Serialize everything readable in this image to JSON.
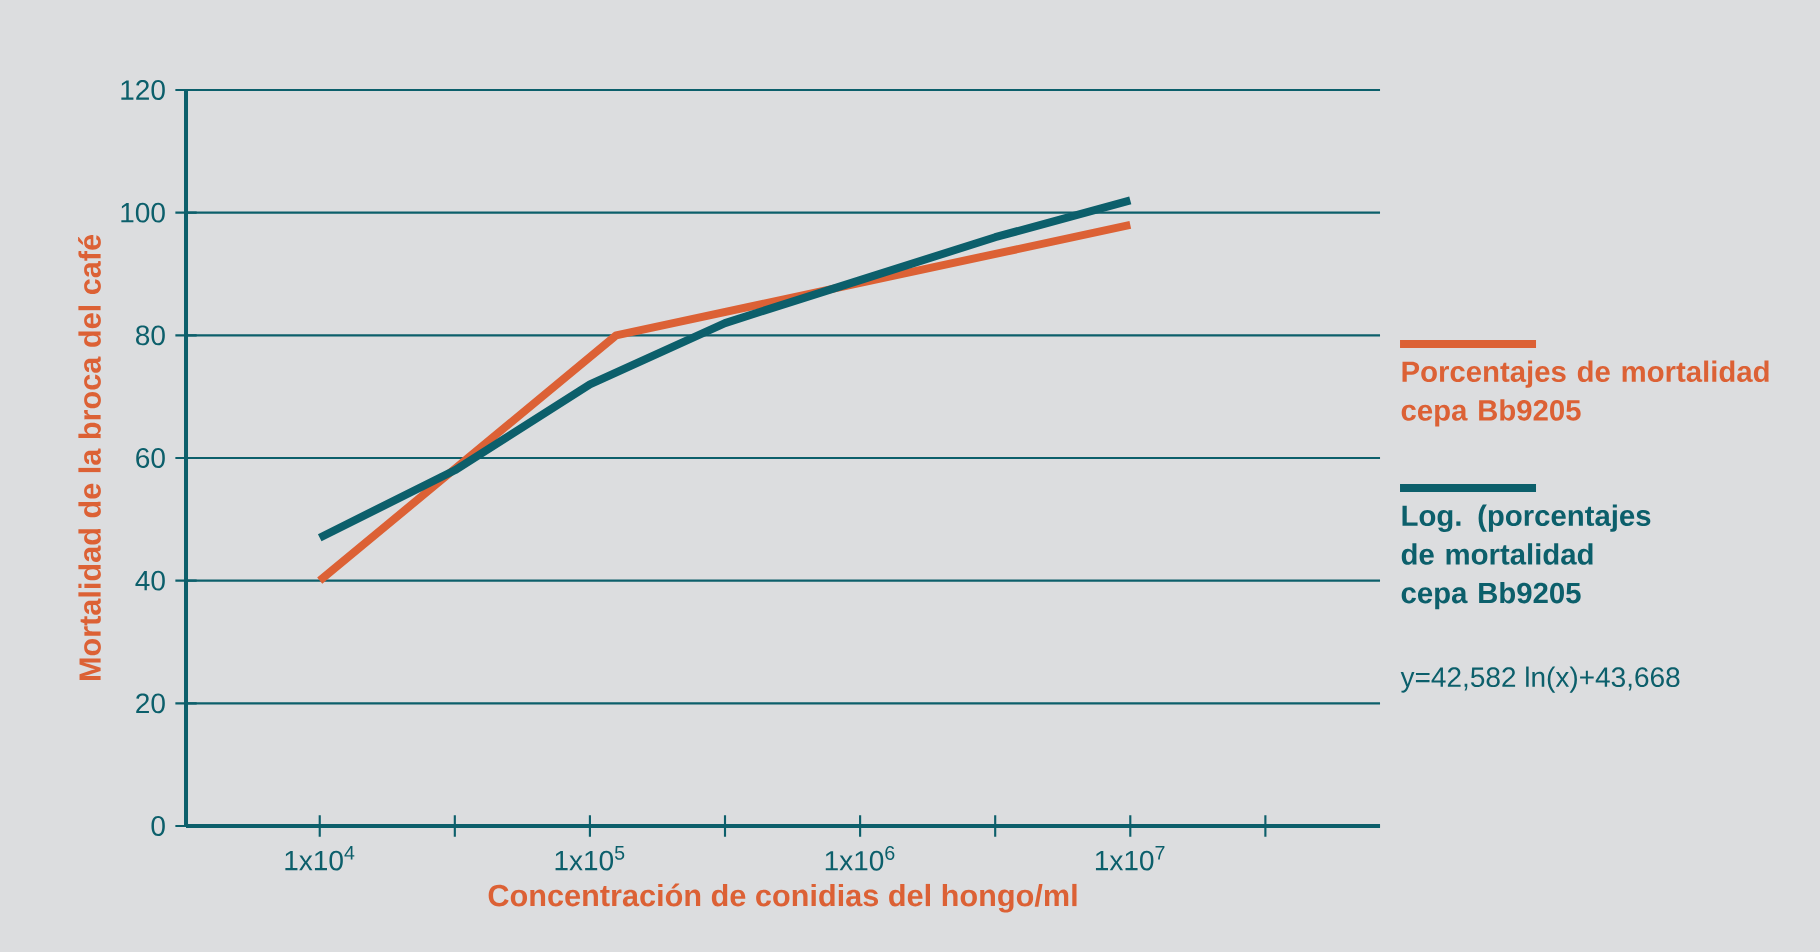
{
  "chart_data": {
    "type": "line",
    "xlabel": "Concentración de conidias del hongo/ml",
    "ylabel": "Mortalidad de la broca del café",
    "log": "x",
    "xlim": [
      3200,
      84000000
    ],
    "xticks": [
      {
        "value": 10000,
        "label": "1x10$^{4}$"
      },
      {
        "value": 31623,
        "label": null
      },
      {
        "value": 100000,
        "label": "1x10$^{5}$"
      },
      {
        "value": 316228,
        "label": null
      },
      {
        "value": 1000000,
        "label": "1x10$^{6}$"
      },
      {
        "value": 3162278,
        "label": null
      },
      {
        "value": 10000000,
        "label": "1x10$^{7}$"
      },
      {
        "value": 31622777,
        "label": null
      }
    ],
    "ylim": [
      0,
      120
    ],
    "yticks": [
      0,
      20,
      40,
      60,
      80,
      100,
      120
    ],
    "grid": "y",
    "legend": "right",
    "marker": "none",
    "line_style": "solid",
    "series": [
      {
        "name": "Porcentajes de mortalidad cepa Bb9205",
        "color": "#dc6135",
        "x": [
          10000,
          125000,
          10000000
        ],
        "values": [
          40,
          80,
          98
        ]
      },
      {
        "name": "Log. (porcentajes de mortalidad cepa Bb9205",
        "color": "#0c5f6b",
        "x": [
          10000,
          31623,
          100000,
          316228,
          1000000,
          3162278,
          10000000
        ],
        "values": [
          47,
          58,
          72,
          82,
          89,
          96,
          102
        ]
      }
    ],
    "annotations": [
      "y=42,582 ln(x)+43,668"
    ]
  }
}
